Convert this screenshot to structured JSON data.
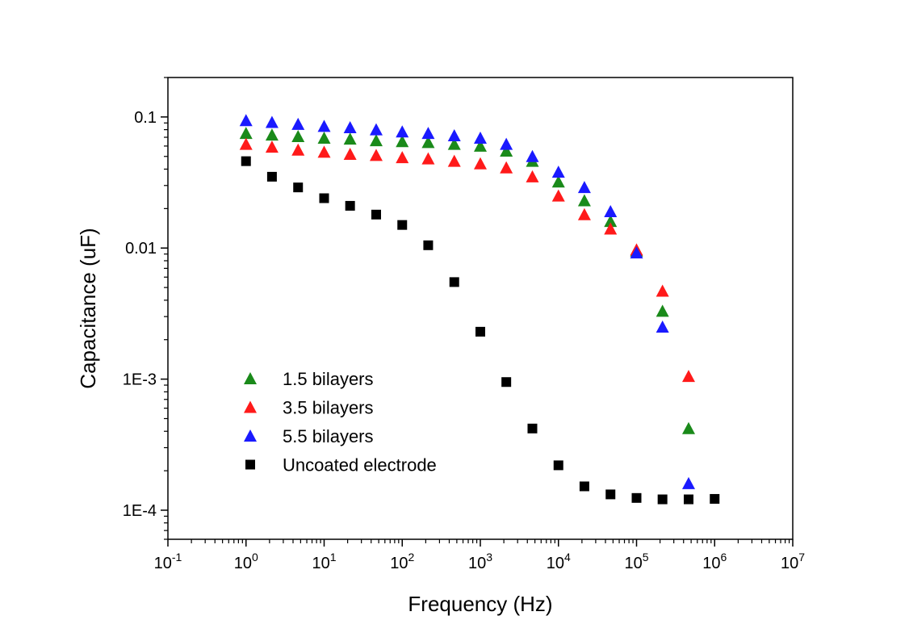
{
  "chart_data": {
    "type": "scatter",
    "title": "",
    "xlabel": "Frequency (Hz)",
    "ylabel": "Capacitance (uF)",
    "xscale": "log",
    "yscale": "log",
    "xlim": [
      0.1,
      10000000
    ],
    "ylim": [
      6e-05,
      0.2
    ],
    "x_ticks": [
      {
        "base": "10",
        "exp": "-1"
      },
      {
        "base": "10",
        "exp": "0"
      },
      {
        "base": "10",
        "exp": "1"
      },
      {
        "base": "10",
        "exp": "2"
      },
      {
        "base": "10",
        "exp": "3"
      },
      {
        "base": "10",
        "exp": "4"
      },
      {
        "base": "10",
        "exp": "5"
      },
      {
        "base": "10",
        "exp": "6"
      },
      {
        "base": "10",
        "exp": "7"
      }
    ],
    "y_ticks": [
      {
        "value": 0.0001,
        "label": "1E-4"
      },
      {
        "value": 0.001,
        "label": "1E-3"
      },
      {
        "value": 0.01,
        "label": "0.01"
      },
      {
        "value": 0.1,
        "label": "0.1"
      }
    ],
    "grid": false,
    "legend_position": "lower-left",
    "series": [
      {
        "name": "1.5 bilayers",
        "marker": "triangle",
        "color": "#1a8a1a",
        "x": [
          1,
          2.15,
          4.64,
          10,
          21.5,
          46.4,
          100,
          215,
          464,
          1000,
          2150,
          4640,
          10000,
          21500,
          46400,
          100000,
          215000,
          464000
        ],
        "y": [
          0.075,
          0.073,
          0.071,
          0.069,
          0.068,
          0.066,
          0.065,
          0.064,
          0.062,
          0.06,
          0.055,
          0.046,
          0.032,
          0.023,
          0.016,
          0.0095,
          0.0033,
          0.00042
        ]
      },
      {
        "name": "3.5 bilayers",
        "marker": "triangle",
        "color": "#ff1a1a",
        "x": [
          1,
          2.15,
          4.64,
          10,
          21.5,
          46.4,
          100,
          215,
          464,
          1000,
          2150,
          4640,
          10000,
          21500,
          46400,
          100000,
          215000,
          464000
        ],
        "y": [
          0.062,
          0.059,
          0.056,
          0.054,
          0.052,
          0.051,
          0.049,
          0.048,
          0.046,
          0.044,
          0.041,
          0.035,
          0.025,
          0.018,
          0.014,
          0.0097,
          0.0047,
          0.00105
        ]
      },
      {
        "name": "5.5 bilayers",
        "marker": "triangle",
        "color": "#1a1aff",
        "x": [
          1,
          2.15,
          4.64,
          10,
          21.5,
          46.4,
          100,
          215,
          464,
          1000,
          2150,
          4640,
          10000,
          21500,
          46400,
          100000,
          215000,
          464000
        ],
        "y": [
          0.094,
          0.091,
          0.088,
          0.085,
          0.083,
          0.08,
          0.077,
          0.075,
          0.072,
          0.069,
          0.062,
          0.05,
          0.038,
          0.029,
          0.019,
          0.0092,
          0.0025,
          0.00016
        ]
      },
      {
        "name": "Uncoated electrode",
        "marker": "square",
        "color": "#000000",
        "x": [
          1,
          2.15,
          4.64,
          10,
          21.5,
          46.4,
          100,
          215,
          464,
          1000,
          2150,
          4640,
          10000,
          21500,
          46400,
          100000,
          215000,
          464000,
          1000000
        ],
        "y": [
          0.046,
          0.035,
          0.029,
          0.024,
          0.021,
          0.018,
          0.015,
          0.0105,
          0.0055,
          0.0023,
          0.00095,
          0.00042,
          0.00022,
          0.000152,
          0.000132,
          0.000124,
          0.000121,
          0.000121,
          0.000122
        ]
      }
    ]
  }
}
